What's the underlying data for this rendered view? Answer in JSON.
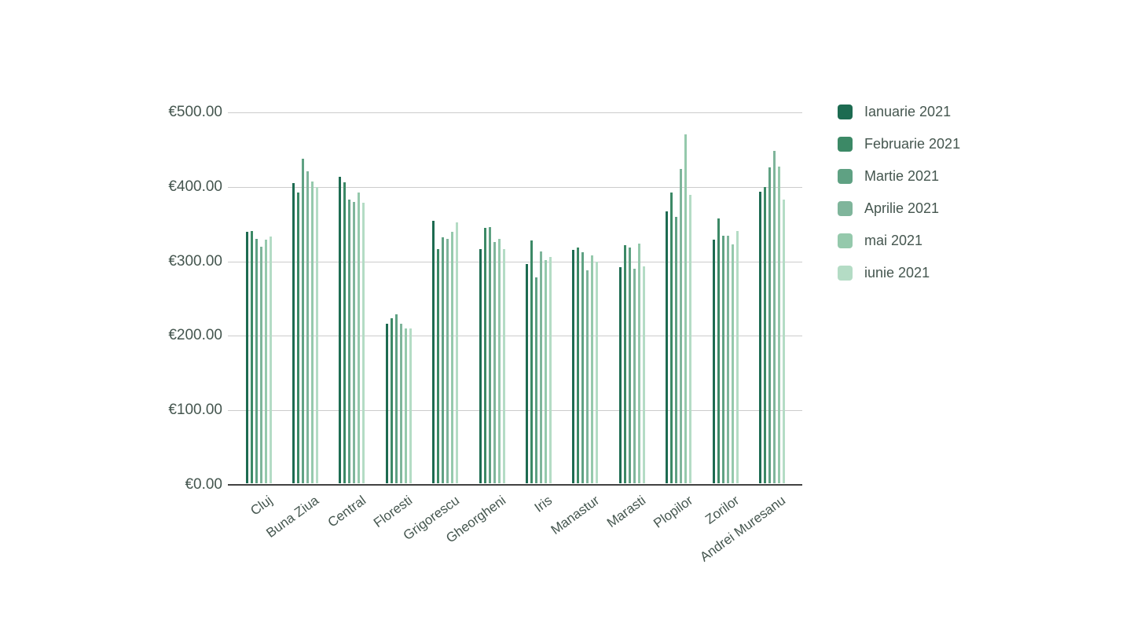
{
  "chart_data": {
    "type": "bar",
    "title": "",
    "xlabel": "",
    "ylabel": "",
    "categories": [
      "Cluj",
      "Buna Ziua",
      "Central",
      "Floresti",
      "Grigorescu",
      "Gheorgheni",
      "Iris",
      "Manastur",
      "Marasti",
      "Plopilor",
      "Zorilor",
      "Andrei Muresanu"
    ],
    "series": [
      {
        "name": "Ianuarie 2021",
        "color": "#1d6b51",
        "values": [
          338,
          403,
          411,
          214,
          352,
          314,
          294,
          313,
          290,
          365,
          327,
          391
        ]
      },
      {
        "name": "Februarie 2021",
        "color": "#3c8966",
        "values": [
          339,
          390,
          404,
          222,
          314,
          343,
          326,
          316,
          320,
          390,
          355,
          398
        ]
      },
      {
        "name": "Martie 2021",
        "color": "#5fa183",
        "values": [
          328,
          436,
          381,
          227,
          330,
          344,
          276,
          310,
          316,
          358,
          332,
          424
        ]
      },
      {
        "name": "Aprilie 2021",
        "color": "#7fb59b",
        "values": [
          317,
          419,
          378,
          214,
          328,
          324,
          311,
          286,
          288,
          422,
          332,
          446
        ]
      },
      {
        "name": "mai 2021",
        "color": "#95c9ac",
        "values": [
          327,
          405,
          390,
          208,
          338,
          328,
          300,
          306,
          322,
          468,
          321,
          425
        ]
      },
      {
        "name": "iunie 2021",
        "color": "#b4dcc5",
        "values": [
          331,
          398,
          377,
          208,
          350,
          314,
          304,
          297,
          291,
          387,
          339,
          381
        ]
      }
    ],
    "ylim": [
      0,
      500
    ],
    "y_ticks": [
      {
        "value": 500,
        "label": "€500.00"
      },
      {
        "value": 400,
        "label": "€400.00"
      },
      {
        "value": 300,
        "label": "€300.00"
      },
      {
        "value": 200,
        "label": "€200.00"
      },
      {
        "value": 100,
        "label": "€100.00"
      },
      {
        "value": 0,
        "label": "€0.00"
      }
    ],
    "grid": true,
    "legend_position": "right"
  },
  "colors": {
    "background": "#ffffff",
    "gridline": "#cccccc",
    "axis_line": "#424242",
    "label_text": "#45564f"
  }
}
